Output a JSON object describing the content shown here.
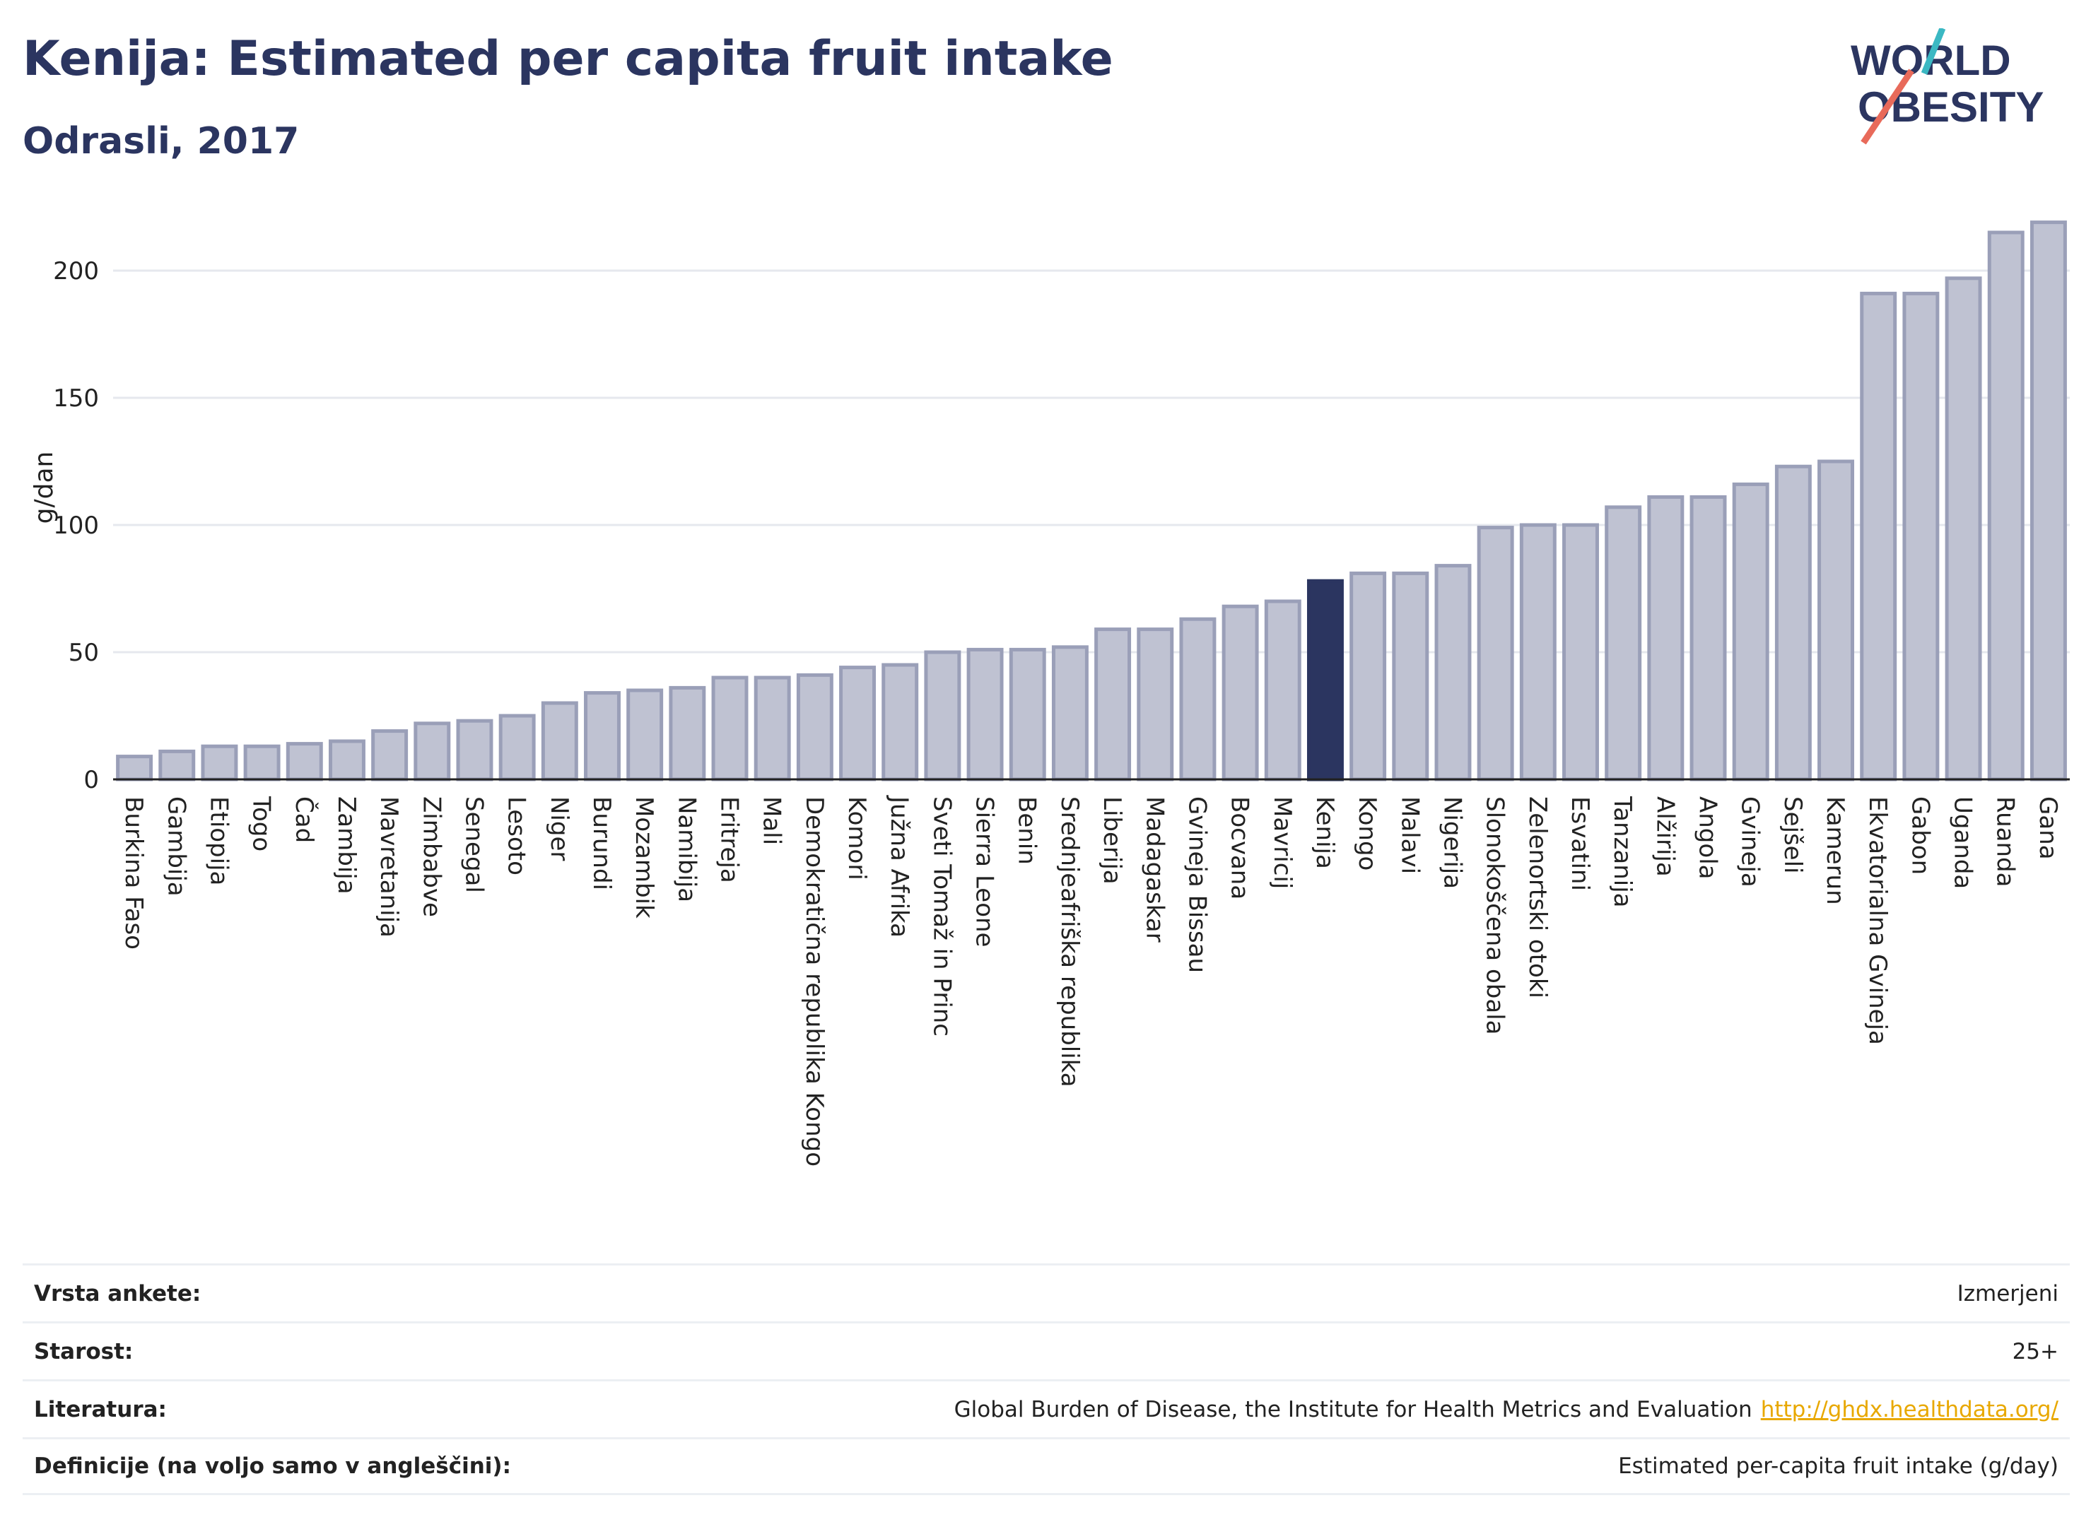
{
  "header": {
    "title": "Kenija: Estimated per capita fruit intake",
    "subtitle": "Odrasli, 2017"
  },
  "logo": {
    "line1": "WORLD",
    "line2": "OBESITY",
    "accent_colors": [
      "#3bb8c3",
      "#e86a5a"
    ]
  },
  "colors": {
    "bar_fill": "#bfc2d2",
    "bar_stroke": "#9a9fb8",
    "highlight": "#2b3560",
    "grid": "#e6e8ee",
    "text": "#2b3560"
  },
  "chart_data": {
    "type": "bar",
    "title": "Kenija: Estimated per capita fruit intake",
    "subtitle": "Odrasli, 2017",
    "xlabel": "",
    "ylabel": "g/dan",
    "ylim": [
      0,
      230
    ],
    "yticks": [
      0,
      50,
      100,
      150,
      200
    ],
    "grid": true,
    "highlight": "Kenija",
    "categories": [
      "Burkina Faso",
      "Gambija",
      "Etiopija",
      "Togo",
      "Čad",
      "Zambija",
      "Mavretanija",
      "Zimbabve",
      "Senegal",
      "Lesoto",
      "Niger",
      "Burundi",
      "Mozambik",
      "Namibija",
      "Eritreja",
      "Mali",
      "Demokratična republika Kongo",
      "Komori",
      "Južna Afrika",
      "Sveti Tomaž in Princ",
      "Sierra Leone",
      "Benin",
      "Srednjeafriška republika",
      "Liberija",
      "Madagaskar",
      "Gvineja Bissau",
      "Bocvana",
      "Mavricij",
      "Kenija",
      "Kongo",
      "Malavi",
      "Nigerija",
      "Slonokoščena obala",
      "Zelenortski otoki",
      "Esvatini",
      "Tanzanija",
      "Alžirija",
      "Angola",
      "Gvineja",
      "Sejšeli",
      "Kamerun",
      "Ekvatorialna Gvineja",
      "Gabon",
      "Uganda",
      "Ruanda",
      "Gana"
    ],
    "values": [
      9,
      11,
      13,
      13,
      14,
      15,
      19,
      22,
      23,
      25,
      30,
      34,
      35,
      36,
      40,
      40,
      41,
      44,
      45,
      50,
      51,
      51,
      52,
      59,
      59,
      63,
      68,
      70,
      78,
      81,
      81,
      84,
      99,
      100,
      100,
      107,
      111,
      111,
      116,
      123,
      125,
      191,
      191,
      197,
      215,
      219
    ]
  },
  "metadata_table": [
    {
      "label": "Vrsta ankete:",
      "value": "Izmerjeni",
      "link": ""
    },
    {
      "label": "Starost:",
      "value": "25+",
      "link": ""
    },
    {
      "label": "Literatura:",
      "value": "Global Burden of Disease, the Institute for Health Metrics and Evaluation",
      "link": "http://ghdx.healthdata.org/"
    },
    {
      "label": "Definicije (na voljo samo v angleščini):",
      "value": "Estimated per-capita fruit intake (g/day)",
      "link": ""
    }
  ]
}
